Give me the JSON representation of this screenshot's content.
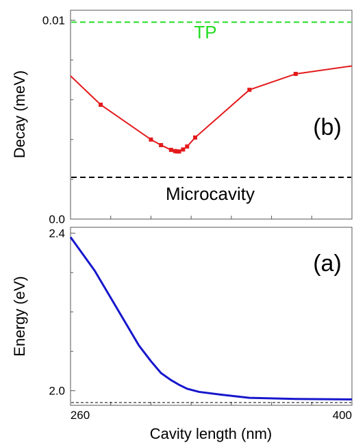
{
  "chart_data": [
    {
      "type": "line",
      "panel_label": "(b)",
      "ylabel": "Decay (meV)",
      "xlim": [
        260,
        400
      ],
      "ylim": [
        0.0,
        0.0105
      ],
      "y_ticks": [
        {
          "value": 0.0,
          "label": "0.0"
        },
        {
          "value": 0.01,
          "label": "0.01"
        }
      ],
      "y_minor_ticks": [
        0.002,
        0.004,
        0.006,
        0.008
      ],
      "x_minor_ticks": [
        280,
        300,
        320,
        340,
        360,
        380
      ],
      "grid": false,
      "series": [
        {
          "color": "#e31a1c",
          "marker": "square",
          "x": [
            260,
            275,
            300,
            305,
            310,
            312,
            313,
            314,
            316,
            318,
            322,
            349,
            372,
            400
          ],
          "y": [
            0.0072,
            0.00575,
            0.004,
            0.00372,
            0.00348,
            0.00342,
            0.0034,
            0.0034,
            0.0035,
            0.00365,
            0.0041,
            0.0065,
            0.0073,
            0.0077
          ]
        }
      ],
      "reference_lines": [
        {
          "label": "TP",
          "y": 0.0099,
          "color": "#22dd22",
          "style": "dashed"
        },
        {
          "label": "Microcavity",
          "y": 0.0021,
          "color": "#000000",
          "style": "dashed"
        }
      ]
    },
    {
      "type": "line",
      "panel_label": "(a)",
      "ylabel": "Energy (eV)",
      "xlabel": "Cavity length (nm)",
      "xlim": [
        260,
        400
      ],
      "ylim": [
        1.963,
        2.415
      ],
      "x_ticks": [
        {
          "value": 260,
          "label": "260"
        },
        {
          "value": 400,
          "label": "400"
        }
      ],
      "x_minor_ticks": [
        280,
        300,
        320,
        340,
        360,
        380
      ],
      "y_ticks": [
        {
          "value": 2.0,
          "label": "2.0"
        },
        {
          "value": 2.4,
          "label": "2.4"
        }
      ],
      "y_minor_ticks": [
        2.1,
        2.2,
        2.3
      ],
      "grid": false,
      "series": [
        {
          "color": "#1616cc",
          "x": [
            260,
            272,
            283,
            294,
            300,
            305,
            310,
            314,
            318,
            324,
            335,
            349,
            372,
            400
          ],
          "y": [
            2.39,
            2.305,
            2.21,
            2.115,
            2.075,
            2.045,
            2.027,
            2.015,
            2.005,
            1.997,
            1.99,
            1.982,
            1.979,
            1.978
          ]
        }
      ],
      "reference_lines": [
        {
          "y": 1.97,
          "color": "#000000",
          "style": "dashed"
        }
      ]
    }
  ]
}
